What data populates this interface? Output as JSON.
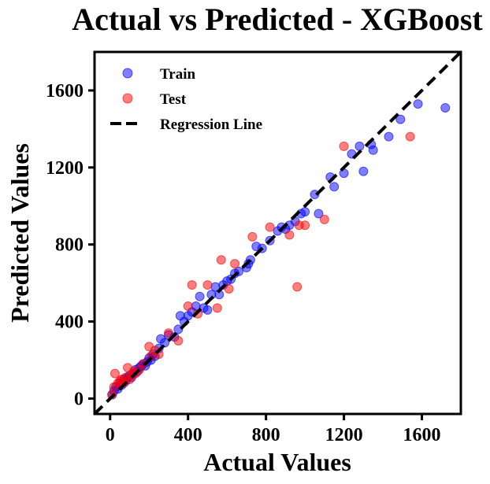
{
  "chart_data": {
    "type": "scatter",
    "title": "Actual vs Predicted - XGBoost",
    "xlabel": "Actual Values",
    "ylabel": "Predicted Values",
    "xlim": [
      -80,
      1800
    ],
    "ylim": [
      -80,
      1800
    ],
    "xticks": [
      0,
      400,
      800,
      1200,
      1600
    ],
    "yticks": [
      0,
      400,
      800,
      1200,
      1600
    ],
    "grid": false,
    "legend_position": "top-left",
    "series": [
      {
        "name": "Train",
        "color": "#0000ff",
        "points": [
          [
            10,
            20
          ],
          [
            20,
            40
          ],
          [
            30,
            60
          ],
          [
            40,
            50
          ],
          [
            50,
            80
          ],
          [
            60,
            70
          ],
          [
            70,
            100
          ],
          [
            80,
            90
          ],
          [
            90,
            110
          ],
          [
            100,
            120
          ],
          [
            110,
            110
          ],
          [
            120,
            130
          ],
          [
            130,
            150
          ],
          [
            140,
            140
          ],
          [
            150,
            160
          ],
          [
            160,
            170
          ],
          [
            170,
            180
          ],
          [
            180,
            170
          ],
          [
            190,
            190
          ],
          [
            200,
            210
          ],
          [
            210,
            200
          ],
          [
            220,
            230
          ],
          [
            230,
            220
          ],
          [
            250,
            260
          ],
          [
            260,
            310
          ],
          [
            280,
            290
          ],
          [
            300,
            330
          ],
          [
            330,
            320
          ],
          [
            350,
            360
          ],
          [
            360,
            430
          ],
          [
            380,
            400
          ],
          [
            400,
            430
          ],
          [
            420,
            450
          ],
          [
            440,
            480
          ],
          [
            460,
            530
          ],
          [
            480,
            470
          ],
          [
            500,
            460
          ],
          [
            520,
            540
          ],
          [
            540,
            580
          ],
          [
            560,
            540
          ],
          [
            580,
            590
          ],
          [
            600,
            610
          ],
          [
            620,
            620
          ],
          [
            640,
            650
          ],
          [
            660,
            660
          ],
          [
            700,
            680
          ],
          [
            710,
            700
          ],
          [
            720,
            720
          ],
          [
            750,
            790
          ],
          [
            780,
            780
          ],
          [
            820,
            820
          ],
          [
            860,
            870
          ],
          [
            880,
            890
          ],
          [
            900,
            880
          ],
          [
            920,
            900
          ],
          [
            950,
            920
          ],
          [
            980,
            960
          ],
          [
            1000,
            970
          ],
          [
            1050,
            1060
          ],
          [
            1070,
            960
          ],
          [
            1130,
            1150
          ],
          [
            1150,
            1100
          ],
          [
            1200,
            1170
          ],
          [
            1240,
            1270
          ],
          [
            1280,
            1310
          ],
          [
            1300,
            1180
          ],
          [
            1340,
            1320
          ],
          [
            1350,
            1290
          ],
          [
            1430,
            1360
          ],
          [
            1490,
            1450
          ],
          [
            1580,
            1530
          ],
          [
            1720,
            1510
          ]
        ]
      },
      {
        "name": "Test",
        "color": "#ff0000",
        "points": [
          [
            10,
            20
          ],
          [
            20,
            60
          ],
          [
            25,
            130
          ],
          [
            40,
            80
          ],
          [
            50,
            90
          ],
          [
            60,
            100
          ],
          [
            70,
            80
          ],
          [
            80,
            110
          ],
          [
            90,
            160
          ],
          [
            100,
            100
          ],
          [
            110,
            120
          ],
          [
            120,
            140
          ],
          [
            130,
            130
          ],
          [
            150,
            150
          ],
          [
            170,
            180
          ],
          [
            200,
            270
          ],
          [
            210,
            220
          ],
          [
            230,
            250
          ],
          [
            250,
            230
          ],
          [
            300,
            340
          ],
          [
            350,
            300
          ],
          [
            400,
            480
          ],
          [
            420,
            590
          ],
          [
            450,
            440
          ],
          [
            500,
            590
          ],
          [
            550,
            470
          ],
          [
            570,
            720
          ],
          [
            610,
            570
          ],
          [
            640,
            700
          ],
          [
            730,
            840
          ],
          [
            820,
            890
          ],
          [
            920,
            850
          ],
          [
            960,
            580
          ],
          [
            970,
            900
          ],
          [
            1000,
            900
          ],
          [
            1100,
            930
          ],
          [
            1200,
            1310
          ],
          [
            1540,
            1360
          ]
        ]
      }
    ],
    "reference_line": {
      "name": "Regression Line",
      "from": [
        -80,
        -80
      ],
      "to": [
        1800,
        1800
      ],
      "style": "dashed",
      "color": "#000000"
    }
  }
}
